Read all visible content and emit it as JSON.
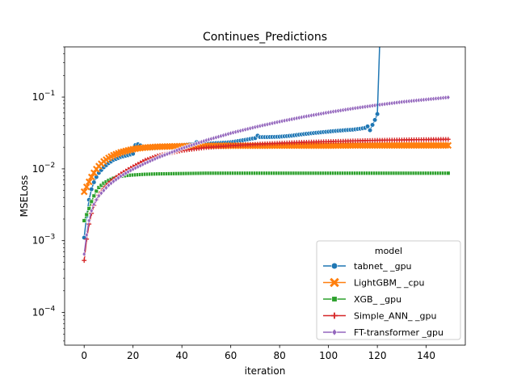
{
  "chart_data": {
    "type": "line",
    "title": "Continues_Predictions",
    "xlabel": "iteration",
    "ylabel": "MSELoss",
    "xlim": [
      -8,
      156
    ],
    "ylim": [
      3.5e-05,
      0.5
    ],
    "yscale": "log",
    "x_ticks": [
      {
        "value": 0,
        "label": "0"
      },
      {
        "value": 20,
        "label": "20"
      },
      {
        "value": 40,
        "label": "40"
      },
      {
        "value": 60,
        "label": "60"
      },
      {
        "value": 80,
        "label": "80"
      },
      {
        "value": 100,
        "label": "100"
      },
      {
        "value": 120,
        "label": "120"
      },
      {
        "value": 140,
        "label": "140"
      }
    ],
    "y_ticks": [
      {
        "value": 0.0001,
        "base": "10",
        "exp": "−4"
      },
      {
        "value": 0.001,
        "base": "10",
        "exp": "−3"
      },
      {
        "value": 0.01,
        "base": "10",
        "exp": "−2"
      },
      {
        "value": 0.1,
        "base": "10",
        "exp": "−1"
      }
    ],
    "legend": {
      "title": "model",
      "position": "lower-right"
    },
    "series": [
      {
        "name": "tabnet_ _gpu",
        "color": "#1f77b4",
        "marker": "circle",
        "x": [
          0,
          1,
          2,
          3,
          4,
          5,
          6,
          8,
          10,
          12,
          15,
          18,
          20,
          21,
          22,
          23,
          24,
          25,
          27,
          30,
          35,
          40,
          45,
          46,
          47,
          50,
          55,
          60,
          65,
          70,
          71,
          72,
          75,
          80,
          85,
          90,
          95,
          100,
          105,
          110,
          113,
          115,
          116,
          117,
          118,
          119,
          120
        ],
        "values": [
          0.0011,
          0.0022,
          0.0037,
          0.0052,
          0.0065,
          0.0077,
          0.0088,
          0.0105,
          0.012,
          0.0133,
          0.0146,
          0.0155,
          0.0162,
          0.0215,
          0.022,
          0.0212,
          0.0202,
          0.0195,
          0.0193,
          0.0196,
          0.0203,
          0.0213,
          0.0222,
          0.0235,
          0.0226,
          0.0225,
          0.0229,
          0.0235,
          0.025,
          0.0268,
          0.029,
          0.0277,
          0.0277,
          0.028,
          0.029,
          0.0305,
          0.0318,
          0.033,
          0.0342,
          0.0352,
          0.0362,
          0.0372,
          0.039,
          0.0345,
          0.041,
          0.048,
          0.058
        ]
      },
      {
        "name": "LightGBM_ _cpu",
        "color": "#ff7f0e",
        "marker": "x",
        "x": [
          0,
          1,
          2,
          3,
          4,
          5,
          6,
          8,
          10,
          12,
          15,
          18,
          20,
          22,
          25,
          30,
          40,
          50,
          60,
          70,
          80,
          90,
          100,
          110,
          120,
          130,
          140,
          149
        ],
        "values": [
          0.0048,
          0.0056,
          0.0066,
          0.0077,
          0.0088,
          0.0099,
          0.0109,
          0.0127,
          0.0142,
          0.0155,
          0.017,
          0.0181,
          0.0188,
          0.0193,
          0.0198,
          0.0203,
          0.0207,
          0.0209,
          0.021,
          0.021,
          0.0211,
          0.0211,
          0.0211,
          0.0212,
          0.0212,
          0.0212,
          0.0212,
          0.0212
        ]
      },
      {
        "name": "XGB_ _gpu",
        "color": "#2ca02c",
        "marker": "square",
        "x": [
          0,
          1,
          2,
          3,
          4,
          5,
          6,
          8,
          10,
          12,
          15,
          18,
          20,
          25,
          30,
          40,
          50,
          60,
          70,
          80,
          90,
          100,
          110,
          120,
          130,
          140,
          149
        ],
        "values": [
          0.0019,
          0.0023,
          0.0028,
          0.0035,
          0.0042,
          0.0049,
          0.0055,
          0.0063,
          0.0069,
          0.0074,
          0.0078,
          0.0081,
          0.0082,
          0.0084,
          0.0085,
          0.0086,
          0.0087,
          0.0087,
          0.0087,
          0.0087,
          0.0087,
          0.0087,
          0.0087,
          0.0087,
          0.0087,
          0.0087,
          0.0087
        ]
      },
      {
        "name": "Simple_ANN_ _gpu",
        "color": "#d62728",
        "marker": "plus",
        "x": [
          0,
          1,
          2,
          3,
          4,
          5,
          6,
          8,
          10,
          12,
          15,
          18,
          20,
          25,
          30,
          40,
          50,
          60,
          70,
          80,
          90,
          100,
          110,
          120,
          130,
          140,
          149
        ],
        "values": [
          0.00053,
          0.00105,
          0.0017,
          0.0024,
          0.0031,
          0.0037,
          0.0043,
          0.0053,
          0.0063,
          0.0072,
          0.0085,
          0.0098,
          0.0107,
          0.0132,
          0.0152,
          0.018,
          0.0198,
          0.021,
          0.022,
          0.0228,
          0.0235,
          0.024,
          0.0245,
          0.025,
          0.0253,
          0.0256,
          0.0258
        ]
      },
      {
        "name": "FT-transformer _gpu",
        "color": "#9467bd",
        "marker": "diamond",
        "x": [
          0,
          1,
          2,
          3,
          4,
          5,
          6,
          8,
          10,
          12,
          15,
          18,
          20,
          25,
          30,
          40,
          50,
          60,
          70,
          80,
          90,
          100,
          110,
          120,
          130,
          140,
          149
        ],
        "values": [
          0.00065,
          0.0012,
          0.0019,
          0.0026,
          0.0032,
          0.0037,
          0.0042,
          0.005,
          0.0059,
          0.0067,
          0.0079,
          0.0091,
          0.0099,
          0.012,
          0.0143,
          0.0193,
          0.025,
          0.0314,
          0.0382,
          0.0455,
          0.0532,
          0.0612,
          0.0693,
          0.0775,
          0.0855,
          0.0925,
          0.099
        ]
      }
    ],
    "extra_segments": [
      {
        "series": 0,
        "x": [
          120,
          121
        ],
        "values": [
          0.058,
          0.6
        ]
      }
    ]
  }
}
